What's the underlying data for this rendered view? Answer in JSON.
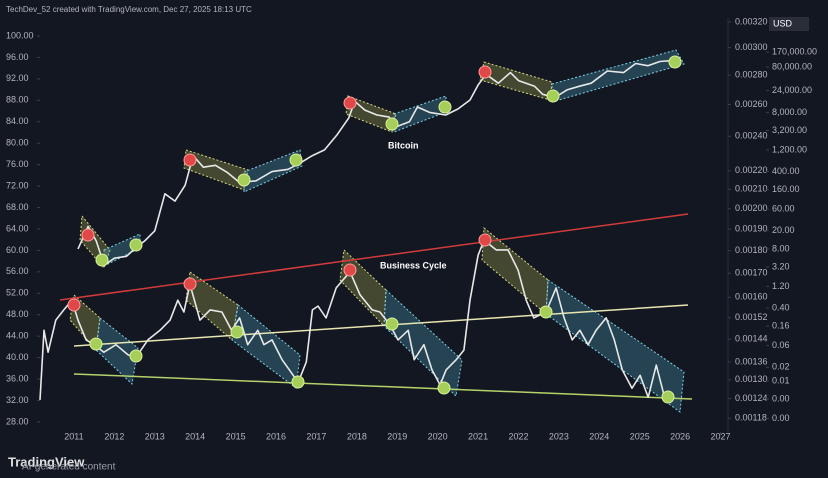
{
  "chart_data": {
    "type": "line",
    "credit": "TechDev_52 created with TradingView.com, Dec 27, 2025 18:13 UTC",
    "watermark": "TradingView",
    "notice": "AI-generated content",
    "xlim": [
      2010.16,
      2027.16
    ],
    "xticks": [
      2011,
      2012,
      2013,
      2014,
      2015,
      2016,
      2017,
      2018,
      2019,
      2020,
      2021,
      2022,
      2023,
      2024,
      2025,
      2026,
      2027
    ],
    "ylim": [
      26.12,
      102.61
    ],
    "yticks": [
      {
        "value": 100,
        "label": "100.00"
      },
      {
        "value": 96,
        "label": "96.00"
      },
      {
        "value": 92,
        "label": "92.00"
      },
      {
        "value": 88,
        "label": "88.00"
      },
      {
        "value": 84,
        "label": "84.00"
      },
      {
        "value": 80,
        "label": "80.00"
      },
      {
        "value": 76,
        "label": "76.00"
      },
      {
        "value": 72,
        "label": "72.00"
      },
      {
        "value": 68,
        "label": "68.00"
      },
      {
        "value": 64,
        "label": "64.00"
      },
      {
        "value": 60,
        "label": "60.00"
      },
      {
        "value": 56,
        "label": "56.00"
      },
      {
        "value": 52,
        "label": "52.00"
      },
      {
        "value": 48,
        "label": "48.00"
      },
      {
        "value": 44,
        "label": "44.00"
      },
      {
        "value": 40,
        "label": "40.00"
      },
      {
        "value": 36,
        "label": "36.00"
      },
      {
        "value": 32,
        "label": "32.00"
      },
      {
        "value": 28,
        "label": "28.00"
      }
    ],
    "y2lim": [
      0.00114,
      0.0032
    ],
    "y2log": true,
    "y2ticks": [
      {
        "value": 0.0032,
        "label": "0.00320"
      },
      {
        "value": 0.003,
        "label": "0.00300"
      },
      {
        "value": 0.0028,
        "label": "0.00280"
      },
      {
        "value": 0.0026,
        "label": "0.00260"
      },
      {
        "value": 0.0024,
        "label": "0.00240"
      },
      {
        "value": 0.0022,
        "label": "0.00220"
      },
      {
        "value": 0.0021,
        "label": "0.00210"
      },
      {
        "value": 0.002,
        "label": "0.00200"
      },
      {
        "value": 0.0019,
        "label": "0.00190"
      },
      {
        "value": 0.0018,
        "label": "0.00180"
      },
      {
        "value": 0.0017,
        "label": "0.00170"
      },
      {
        "value": 0.0016,
        "label": "0.00160"
      },
      {
        "value": 0.00152,
        "label": "0.00152"
      },
      {
        "value": 0.00144,
        "label": "0.00144"
      },
      {
        "value": 0.00136,
        "label": "0.00136"
      },
      {
        "value": 0.0013,
        "label": "0.00130"
      },
      {
        "value": 0.00124,
        "label": "0.00124"
      },
      {
        "value": 0.00118,
        "label": "0.00118"
      }
    ],
    "y3label": "USD",
    "y3lim": [
      0.000756,
      776000
    ],
    "y3log": true,
    "y3ticks": [
      {
        "value": 170000,
        "label": "170,000.00"
      },
      {
        "value": 80000,
        "label": "80,000.00"
      },
      {
        "value": 24000,
        "label": "24,000.00"
      },
      {
        "value": 8000,
        "label": "8,000.00"
      },
      {
        "value": 3200,
        "label": "3,200.00"
      },
      {
        "value": 1200,
        "label": "1,200.00"
      },
      {
        "value": 400,
        "label": "400.00"
      },
      {
        "value": 160,
        "label": "160.00"
      },
      {
        "value": 60,
        "label": "60.00"
      },
      {
        "value": 20,
        "label": "20.00"
      },
      {
        "value": 8,
        "label": "8.00"
      },
      {
        "value": 3.2,
        "label": "3.20"
      },
      {
        "value": 1.2,
        "label": "1.20"
      },
      {
        "value": 0.4,
        "label": "0.40"
      },
      {
        "value": 0.16,
        "label": "0.16"
      },
      {
        "value": 0.06,
        "label": "0.06"
      },
      {
        "value": 0.02,
        "label": "0.02"
      },
      {
        "value": 0.01,
        "label": "0.01"
      },
      {
        "value": 0.004,
        "label": "0.00"
      },
      {
        "value": 0.0015,
        "label": "0.00"
      }
    ],
    "series": [
      {
        "name": "Bitcoin",
        "color": "#e8e8e8",
        "axis": "y3",
        "x": [
          2011.1,
          2011.35,
          2011.55,
          2011.75,
          2012.0,
          2012.3,
          2012.5,
          2012.75,
          2013.0,
          2013.25,
          2013.5,
          2013.75,
          2013.95,
          2014.2,
          2014.5,
          2014.8,
          2015.1,
          2015.5,
          2015.9,
          2016.3,
          2016.6,
          2016.9,
          2017.2,
          2017.5,
          2017.8,
          2017.95,
          2018.2,
          2018.5,
          2018.8,
          2018.95,
          2019.3,
          2019.5,
          2019.8,
          2020.2,
          2020.5,
          2020.8,
          2021.0,
          2021.2,
          2021.5,
          2021.8,
          2022.0,
          2022.4,
          2022.6,
          2022.9,
          2023.2,
          2023.5,
          2023.8,
          2024.2,
          2024.6,
          2024.9,
          2025.2,
          2025.5,
          2025.8,
          2026.0
        ],
        "values": [
          8,
          25,
          12,
          3.5,
          5,
          5.5,
          8,
          12,
          20,
          130,
          90,
          200,
          900,
          500,
          550,
          380,
          230,
          250,
          400,
          450,
          620,
          900,
          1200,
          2500,
          6000,
          14000,
          9000,
          7000,
          6300,
          3800,
          5000,
          10500,
          8000,
          7000,
          9500,
          15000,
          32000,
          55000,
          35000,
          60000,
          40000,
          30000,
          20000,
          17000,
          25000,
          30000,
          35000,
          65000,
          60000,
          95000,
          85000,
          105000,
          110000,
          95000
        ]
      },
      {
        "name": "Business Cycle",
        "color": "#e8e8e8",
        "axis": "y",
        "x": [
          2010.16,
          2010.26,
          2010.36,
          2010.55,
          2010.75,
          2010.95,
          2011.1,
          2011.3,
          2011.5,
          2011.74,
          2012.04,
          2012.34,
          2012.53,
          2012.83,
          2013.13,
          2013.38,
          2013.57,
          2013.72,
          2013.87,
          2014.12,
          2014.37,
          2014.66,
          2014.9,
          2015.1,
          2015.3,
          2015.55,
          2015.7,
          2015.9,
          2016.15,
          2016.55,
          2016.75,
          2016.9,
          2017.04,
          2017.24,
          2017.49,
          2017.83,
          2018.08,
          2018.38,
          2018.57,
          2018.82,
          2019.02,
          2019.27,
          2019.42,
          2019.66,
          2019.86,
          2020.06,
          2020.21,
          2020.46,
          2020.65,
          2020.8,
          2021.0,
          2021.15,
          2021.45,
          2021.74,
          2021.99,
          2022.19,
          2022.38,
          2022.68,
          2022.93,
          2023.13,
          2023.33,
          2023.52,
          2023.72,
          2023.92,
          2024.17,
          2024.37,
          2024.57,
          2024.81,
          2025.01,
          2025.21,
          2025.41,
          2025.6,
          2025.8
        ],
        "values": [
          32.1,
          45.1,
          41,
          47,
          48.9,
          50.7,
          47,
          43.3,
          42.4,
          41,
          42.4,
          40.5,
          40,
          43.3,
          45.1,
          47,
          50.7,
          48.5,
          53.7,
          47,
          48.9,
          48.5,
          45.1,
          47.4,
          42.4,
          45.1,
          42.4,
          43.3,
          39.6,
          35.4,
          39.2,
          48.9,
          49.6,
          47.4,
          53,
          56,
          51.7,
          48.9,
          48.5,
          46.1,
          43.3,
          45.1,
          39.6,
          42.4,
          37.7,
          34.9,
          37.7,
          39.6,
          41.4,
          50.7,
          59.1,
          61.9,
          60.1,
          60.1,
          56.3,
          50.7,
          47.4,
          48.5,
          53,
          47.4,
          43.3,
          45.1,
          42.4,
          45.1,
          47.4,
          43.3,
          37.7,
          34.3,
          36.7,
          32.6,
          38.6,
          33,
          32.5
        ]
      }
    ]
  }
}
